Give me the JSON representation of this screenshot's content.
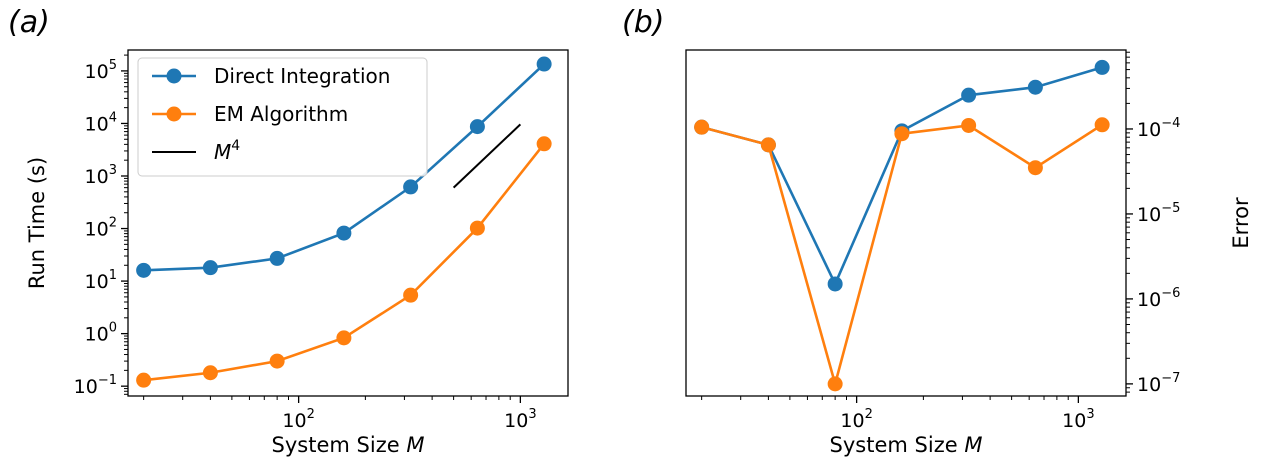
{
  "chart_data": [
    {
      "type": "line",
      "panel_label": "(a)",
      "xlabel_text": "System Size ",
      "xlabel_var": "M",
      "ylabel": "Run Time (s)",
      "xscale": "log",
      "yscale": "log",
      "xlim": [
        17,
        1640
      ],
      "ylim": [
        0.065,
        250000
      ],
      "x_ticks": [
        {
          "base": "10",
          "exp": "2",
          "value": 100
        },
        {
          "base": "10",
          "exp": "3",
          "value": 1000
        }
      ],
      "y_ticks": [
        {
          "base": "10",
          "exp": "−1",
          "value": 0.1
        },
        {
          "base": "10",
          "exp": "0",
          "value": 1
        },
        {
          "base": "10",
          "exp": "1",
          "value": 10
        },
        {
          "base": "10",
          "exp": "2",
          "value": 100
        },
        {
          "base": "10",
          "exp": "3",
          "value": 1000
        },
        {
          "base": "10",
          "exp": "4",
          "value": 10000
        },
        {
          "base": "10",
          "exp": "5",
          "value": 100000
        }
      ],
      "legend_position": "top-left",
      "series": [
        {
          "name": "Direct Integration",
          "color": "#1f77b4",
          "x": [
            20,
            40,
            80,
            160,
            320,
            640,
            1280
          ],
          "y": [
            16,
            18,
            27,
            82,
            620,
            8700,
            135000
          ]
        },
        {
          "name": "EM Algorithm",
          "color": "#ff7f0e",
          "x": [
            20,
            40,
            80,
            160,
            320,
            640,
            1280
          ],
          "y": [
            0.13,
            0.18,
            0.3,
            0.83,
            5.4,
            102,
            4100
          ]
        }
      ],
      "reference_line": {
        "name_var": "M",
        "name_exp": "4",
        "color": "#000000",
        "x": [
          500,
          1000
        ],
        "y": [
          600,
          9600
        ]
      }
    },
    {
      "type": "line",
      "panel_label": "(b)",
      "xlabel_text": "System Size ",
      "xlabel_var": "M",
      "ylabel": "Error",
      "xscale": "log",
      "yscale": "log",
      "xlim": [
        17,
        1640
      ],
      "ylim": [
        7.2e-08,
        0.00085
      ],
      "x_ticks": [
        {
          "base": "10",
          "exp": "2",
          "value": 100
        },
        {
          "base": "10",
          "exp": "3",
          "value": 1000
        }
      ],
      "y_ticks": [
        {
          "base": "10",
          "exp": "−7",
          "value": 1e-07
        },
        {
          "base": "10",
          "exp": "−6",
          "value": 1e-06
        },
        {
          "base": "10",
          "exp": "−5",
          "value": 1e-05
        },
        {
          "base": "10",
          "exp": "−4",
          "value": 0.0001
        }
      ],
      "series": [
        {
          "name": "Direct Integration",
          "color": "#1f77b4",
          "x": [
            20,
            40,
            80,
            160,
            320,
            640,
            1280
          ],
          "y": [
            0.000105,
            6.5e-05,
            1.5e-06,
            9.5e-05,
            0.00025,
            0.00031,
            0.00053
          ]
        },
        {
          "name": "EM Algorithm",
          "color": "#ff7f0e",
          "x": [
            20,
            40,
            80,
            160,
            320,
            640,
            1280
          ],
          "y": [
            0.000105,
            6.5e-05,
            1e-07,
            8.8e-05,
            0.00011,
            3.5e-05,
            0.000112
          ]
        }
      ]
    }
  ]
}
